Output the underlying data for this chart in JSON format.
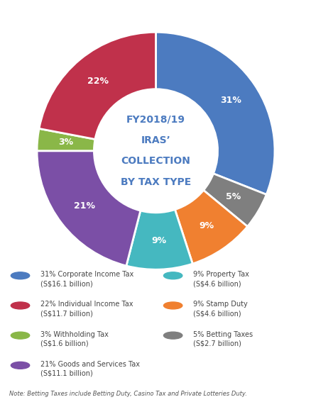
{
  "title_lines": [
    "FY2018/19",
    "IRAS’",
    "COLLECTION",
    "BY TAX TYPE"
  ],
  "slices": [
    31,
    5,
    9,
    9,
    21,
    3,
    22
  ],
  "colors": [
    "#4C7BC0",
    "#7F7F7F",
    "#F08030",
    "#45B8C0",
    "#7B4FA6",
    "#8AB748",
    "#C0314B"
  ],
  "pct_labels": [
    "31%",
    "5%",
    "9%",
    "9%",
    "21%",
    "3%",
    "22%"
  ],
  "legend_left": [
    {
      "label": "31% Corporate Income Tax\n(S$16.1 billion)",
      "color": "#4C7BC0"
    },
    {
      "label": "22% Individual Income Tax\n(S$11.7 billion)",
      "color": "#C0314B"
    },
    {
      "label": "3% Withholding Tax\n(S$1.6 billion)",
      "color": "#8AB748"
    },
    {
      "label": "21% Goods and Services Tax\n(S$11.1 billion)",
      "color": "#7B4FA6"
    }
  ],
  "legend_right": [
    {
      "label": "9% Property Tax\n(S$4.6 billion)",
      "color": "#45B8C0"
    },
    {
      "label": "9% Stamp Duty\n(S$4.6 billion)",
      "color": "#F08030"
    },
    {
      "label": "5% Betting Taxes\n(S$2.7 billion)",
      "color": "#7F7F7F"
    }
  ],
  "note": "Note: Betting Taxes include Betting Duty, Casino Tax and Private Lotteries Duty.",
  "bg_color": "#FFFFFF",
  "center_text_color": "#4C7BC0",
  "label_color": "#FFFFFF"
}
